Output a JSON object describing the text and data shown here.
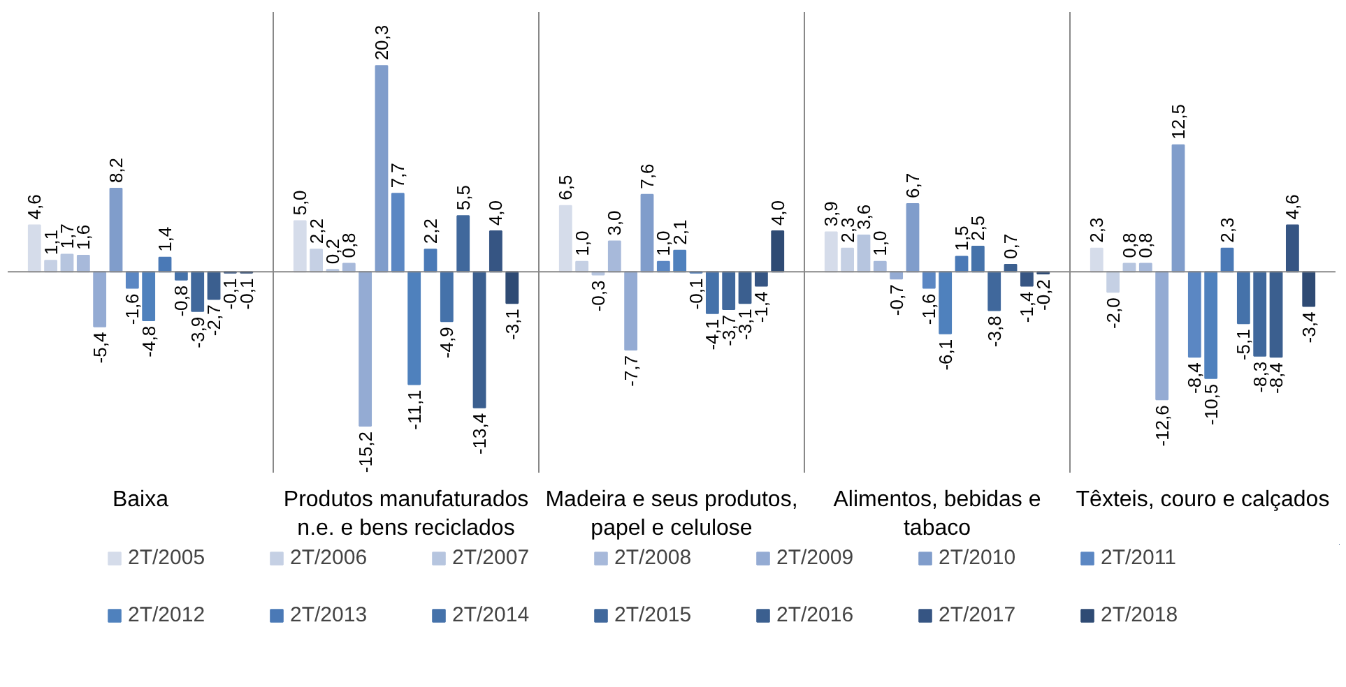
{
  "chart_data": {
    "type": "bar",
    "categories": [
      "Baixa",
      "Produtos manufaturados n.e. e bens reciclados",
      "Madeira e seus produtos, papel e celulose",
      "Alimentos, bebidas e tabaco",
      "Têxteis, couro e calçados"
    ],
    "series": [
      {
        "name": "2T/2005",
        "color": "#d5dcea",
        "values": [
          4.6,
          5.0,
          6.5,
          3.9,
          2.3
        ],
        "value_labels": [
          "4,6",
          "5,0",
          "6,5",
          "3,9",
          "2,3"
        ]
      },
      {
        "name": "2T/2006",
        "color": "#c5d0e4",
        "values": [
          1.1,
          2.2,
          1.0,
          2.3,
          -2.0
        ],
        "value_labels": [
          "1,1",
          "2,2",
          "1,0",
          "2,3",
          "-2,0"
        ]
      },
      {
        "name": "2T/2007",
        "color": "#b6c5df",
        "values": [
          1.7,
          0.2,
          -0.3,
          3.6,
          0.8
        ],
        "value_labels": [
          "1,7",
          "0,2",
          "-0,3",
          "3,6",
          "0,8"
        ]
      },
      {
        "name": "2T/2008",
        "color": "#a7b9da",
        "values": [
          1.6,
          0.8,
          3.0,
          1.0,
          0.8
        ],
        "value_labels": [
          "1,6",
          "0,8",
          "3,0",
          "1,0",
          "0,8"
        ]
      },
      {
        "name": "2T/2009",
        "color": "#94abd3",
        "values": [
          -5.4,
          -15.2,
          -7.7,
          -0.7,
          -12.6
        ],
        "value_labels": [
          "-5,4",
          "-15,2",
          "-7,7",
          "-0,7",
          "-12,6"
        ]
      },
      {
        "name": "2T/2010",
        "color": "#809dcb",
        "values": [
          8.2,
          20.3,
          7.6,
          6.7,
          12.5
        ],
        "value_labels": [
          "8,2",
          "20,3",
          "7,6",
          "6,7",
          "12,5"
        ]
      },
      {
        "name": "2T/2011",
        "color": "#5b87c3",
        "values": [
          -1.6,
          7.7,
          1.0,
          -1.6,
          -8.4
        ],
        "value_labels": [
          "-1,6",
          "7,7",
          "1,0",
          "-1,6",
          "-8,4"
        ]
      },
      {
        "name": "2T/2012",
        "color": "#4f81bd",
        "values": [
          -4.8,
          -11.1,
          2.1,
          -6.1,
          -10.5
        ],
        "value_labels": [
          "-4,8",
          "-11,1",
          "2,1",
          "-6,1",
          "-10,5"
        ]
      },
      {
        "name": "2T/2013",
        "color": "#4a79b6",
        "values": [
          1.4,
          2.2,
          -0.1,
          1.5,
          2.3
        ],
        "value_labels": [
          "1,4",
          "2,2",
          "-0,1",
          "1,5",
          "2,3"
        ]
      },
      {
        "name": "2T/2014",
        "color": "#4572aa",
        "values": [
          -0.8,
          -4.9,
          -4.1,
          2.5,
          -5.1
        ],
        "value_labels": [
          "-0,8",
          "-4,9",
          "-4,1",
          "2,5",
          "-5,1"
        ]
      },
      {
        "name": "2T/2015",
        "color": "#40689c",
        "values": [
          -3.9,
          5.5,
          -3.7,
          -3.8,
          -8.3
        ],
        "value_labels": [
          "-3,9",
          "5,5",
          "-3,7",
          "-3,8",
          "-8,3"
        ]
      },
      {
        "name": "2T/2016",
        "color": "#3b5f8f",
        "values": [
          -2.7,
          -13.4,
          -3.1,
          0.7,
          -8.4
        ],
        "value_labels": [
          "-2,7",
          "-13,4",
          "-3,1",
          "0,7",
          "-8,4"
        ]
      },
      {
        "name": "2T/2017",
        "color": "#365583",
        "values": [
          -0.1,
          4.0,
          -1.4,
          -1.4,
          4.6
        ],
        "value_labels": [
          "-0,1",
          "4,0",
          "-1,4",
          "-1,4",
          "4,6"
        ]
      },
      {
        "name": "2T/2018",
        "color": "#2f4b74",
        "values": [
          -0.1,
          -3.1,
          4.0,
          -0.2,
          -3.4
        ],
        "value_labels": [
          "-0,1",
          "-3,1",
          "4,0",
          "-0,2",
          "-3,4"
        ]
      }
    ],
    "legend": "bottom"
  }
}
